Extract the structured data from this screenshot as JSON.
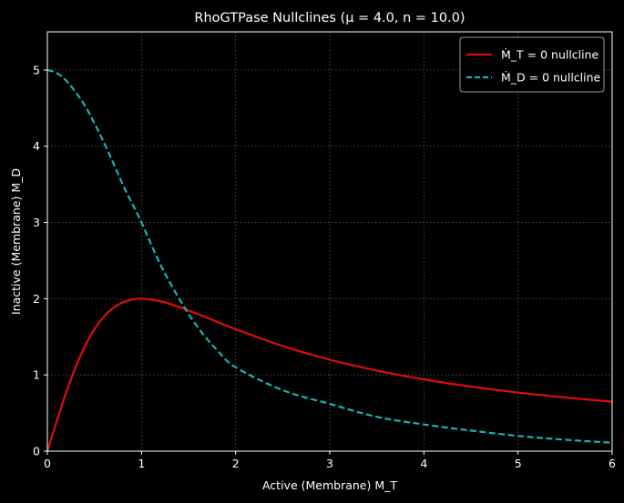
{
  "chart_data": {
    "type": "line",
    "title": "RhoGTPase Nullclines (μ = 4.0, n = 10.0)",
    "xlabel": "Active (Membrane) M_T",
    "ylabel": "Inactive (Membrane) M_D",
    "xlim": [
      0,
      6
    ],
    "ylim": [
      0,
      5.5
    ],
    "xticks": [
      0,
      1,
      2,
      3,
      4,
      5,
      6
    ],
    "yticks": [
      0,
      1,
      2,
      3,
      4,
      5
    ],
    "xtick_labels": [
      "0",
      "1",
      "2",
      "3",
      "4",
      "5",
      "6"
    ],
    "ytick_labels": [
      "0",
      "1",
      "2",
      "3",
      "4",
      "5"
    ],
    "grid": true,
    "legend_position": "top-right",
    "background": "#000000",
    "series": [
      {
        "name": "Ṁ_T = 0 nullcline",
        "color": "#dd0d0d",
        "style": "solid",
        "x": [
          0,
          0.1,
          0.2,
          0.3,
          0.4,
          0.5,
          0.6,
          0.7,
          0.8,
          0.9,
          1.0,
          1.2,
          1.4,
          1.6,
          1.8,
          2.0,
          2.5,
          3.0,
          3.5,
          4.0,
          4.5,
          5.0,
          5.5,
          6.0
        ],
        "y": [
          0,
          0.396,
          0.769,
          1.101,
          1.379,
          1.6,
          1.765,
          1.879,
          1.951,
          1.989,
          2.0,
          1.967,
          1.892,
          1.798,
          1.699,
          1.6,
          1.379,
          1.2,
          1.057,
          0.941,
          0.847,
          0.769,
          0.704,
          0.649
        ]
      },
      {
        "name": "Ṁ_D = 0 nullcline",
        "color": "#17b3b3",
        "style": "dashed",
        "x": [
          0,
          0.1,
          0.2,
          0.3,
          0.4,
          0.5,
          0.6,
          0.7,
          0.8,
          0.9,
          1.0,
          1.2,
          1.4,
          1.6,
          1.8,
          2.0,
          2.5,
          3.0,
          3.5,
          4.0,
          4.5,
          5.0,
          5.5,
          6.0
        ],
        "y": [
          5.0,
          4.96,
          4.86,
          4.71,
          4.53,
          4.3,
          4.05,
          3.78,
          3.5,
          3.25,
          3.0,
          2.45,
          2.0,
          1.62,
          1.33,
          1.1,
          0.8,
          0.62,
          0.45,
          0.35,
          0.27,
          0.2,
          0.15,
          0.11
        ]
      }
    ]
  }
}
